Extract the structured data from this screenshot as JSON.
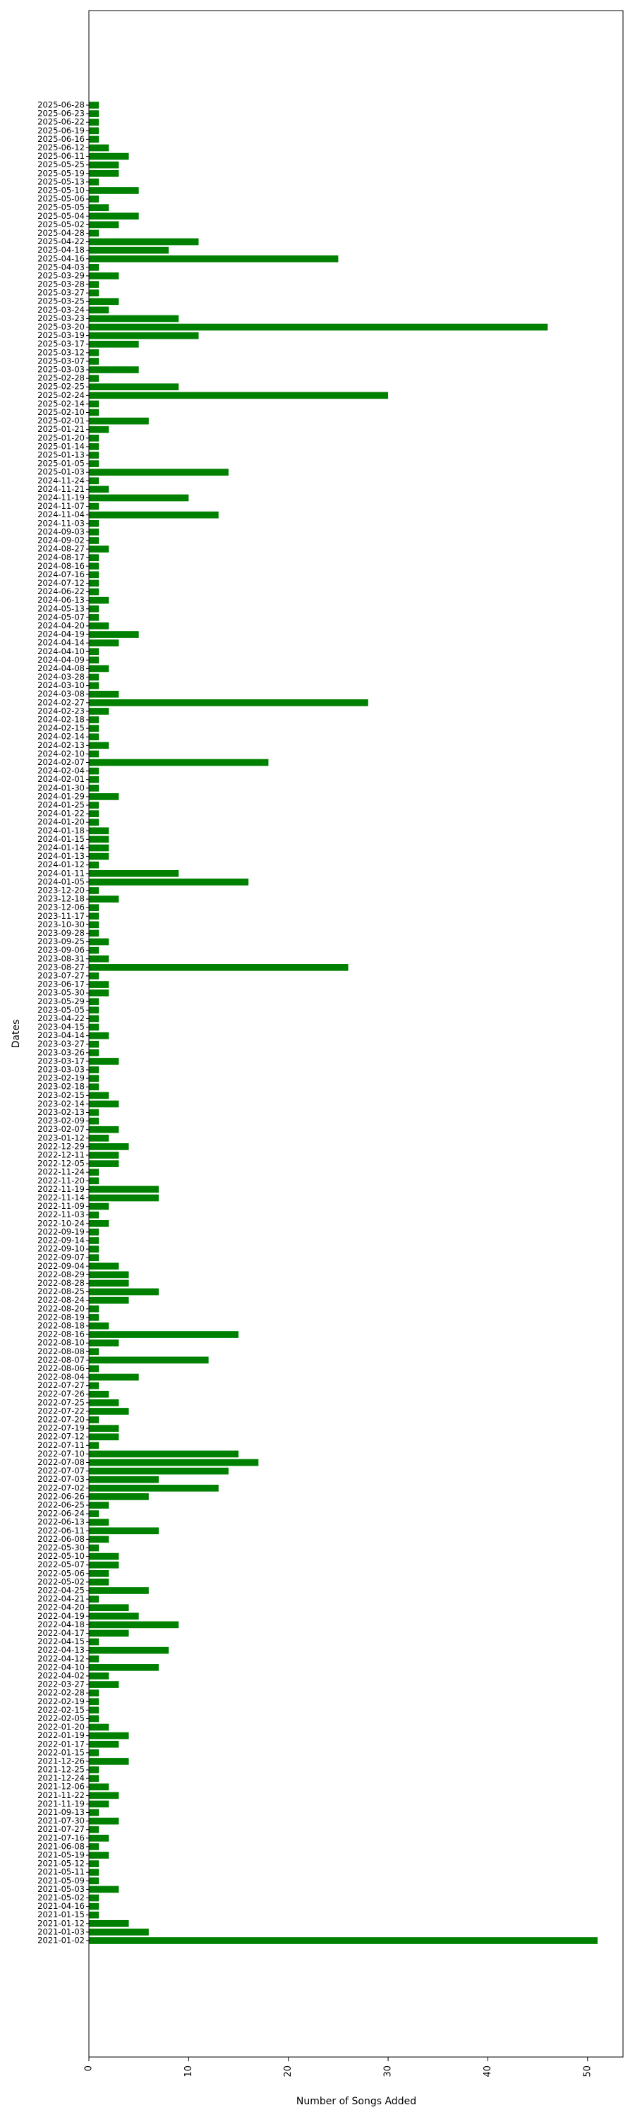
{
  "chart_data": {
    "type": "barh",
    "xlabel": "Number of Songs Added",
    "ylabel": "Dates",
    "color": "#008000",
    "xlim": [
      0,
      53.55
    ],
    "xticks": [
      0,
      10,
      20,
      30,
      40,
      50
    ],
    "categories": [
      "2021-01-02",
      "2021-01-03",
      "2021-01-12",
      "2021-01-15",
      "2021-04-16",
      "2021-05-02",
      "2021-05-03",
      "2021-05-09",
      "2021-05-11",
      "2021-05-12",
      "2021-05-19",
      "2021-06-08",
      "2021-07-16",
      "2021-07-27",
      "2021-07-30",
      "2021-09-13",
      "2021-11-19",
      "2021-11-22",
      "2021-12-06",
      "2021-12-24",
      "2021-12-25",
      "2021-12-26",
      "2022-01-15",
      "2022-01-17",
      "2022-01-19",
      "2022-01-20",
      "2022-02-05",
      "2022-02-15",
      "2022-02-19",
      "2022-02-28",
      "2022-03-27",
      "2022-04-02",
      "2022-04-10",
      "2022-04-12",
      "2022-04-13",
      "2022-04-15",
      "2022-04-17",
      "2022-04-18",
      "2022-04-19",
      "2022-04-20",
      "2022-04-21",
      "2022-04-25",
      "2022-05-02",
      "2022-05-06",
      "2022-05-07",
      "2022-05-10",
      "2022-05-30",
      "2022-06-08",
      "2022-06-11",
      "2022-06-13",
      "2022-06-24",
      "2022-06-25",
      "2022-06-26",
      "2022-07-02",
      "2022-07-03",
      "2022-07-07",
      "2022-07-08",
      "2022-07-10",
      "2022-07-11",
      "2022-07-12",
      "2022-07-19",
      "2022-07-20",
      "2022-07-22",
      "2022-07-25",
      "2022-07-26",
      "2022-07-27",
      "2022-08-04",
      "2022-08-06",
      "2022-08-07",
      "2022-08-08",
      "2022-08-10",
      "2022-08-16",
      "2022-08-18",
      "2022-08-19",
      "2022-08-20",
      "2022-08-24",
      "2022-08-25",
      "2022-08-28",
      "2022-08-29",
      "2022-09-04",
      "2022-09-07",
      "2022-09-10",
      "2022-09-14",
      "2022-09-19",
      "2022-10-24",
      "2022-11-03",
      "2022-11-09",
      "2022-11-14",
      "2022-11-19",
      "2022-11-20",
      "2022-11-24",
      "2022-12-05",
      "2022-12-11",
      "2022-12-29",
      "2023-01-12",
      "2023-02-07",
      "2023-02-09",
      "2023-02-13",
      "2023-02-14",
      "2023-02-15",
      "2023-02-18",
      "2023-02-19",
      "2023-03-03",
      "2023-03-17",
      "2023-03-26",
      "2023-03-27",
      "2023-04-14",
      "2023-04-15",
      "2023-04-22",
      "2023-05-05",
      "2023-05-29",
      "2023-05-30",
      "2023-06-17",
      "2023-07-27",
      "2023-08-27",
      "2023-08-31",
      "2023-09-06",
      "2023-09-25",
      "2023-09-28",
      "2023-10-30",
      "2023-11-17",
      "2023-12-06",
      "2023-12-18",
      "2023-12-20",
      "2024-01-05",
      "2024-01-11",
      "2024-01-12",
      "2024-01-13",
      "2024-01-14",
      "2024-01-15",
      "2024-01-18",
      "2024-01-20",
      "2024-01-22",
      "2024-01-25",
      "2024-01-29",
      "2024-01-30",
      "2024-02-01",
      "2024-02-04",
      "2024-02-07",
      "2024-02-10",
      "2024-02-13",
      "2024-02-14",
      "2024-02-15",
      "2024-02-18",
      "2024-02-23",
      "2024-02-27",
      "2024-03-08",
      "2024-03-10",
      "2024-03-28",
      "2024-04-08",
      "2024-04-09",
      "2024-04-10",
      "2024-04-14",
      "2024-04-19",
      "2024-04-20",
      "2024-05-07",
      "2024-05-13",
      "2024-06-13",
      "2024-06-22",
      "2024-07-12",
      "2024-07-16",
      "2024-08-16",
      "2024-08-17",
      "2024-08-27",
      "2024-09-02",
      "2024-09-03",
      "2024-11-03",
      "2024-11-04",
      "2024-11-07",
      "2024-11-19",
      "2024-11-21",
      "2024-11-24",
      "2025-01-03",
      "2025-01-05",
      "2025-01-13",
      "2025-01-14",
      "2025-01-20",
      "2025-01-21",
      "2025-02-01",
      "2025-02-10",
      "2025-02-14",
      "2025-02-24",
      "2025-02-25",
      "2025-02-28",
      "2025-03-03",
      "2025-03-07",
      "2025-03-12",
      "2025-03-17",
      "2025-03-19",
      "2025-03-20",
      "2025-03-23",
      "2025-03-24",
      "2025-03-25",
      "2025-03-27",
      "2025-03-28",
      "2025-03-29",
      "2025-04-03",
      "2025-04-16",
      "2025-04-18",
      "2025-04-22",
      "2025-04-28",
      "2025-05-02",
      "2025-05-04",
      "2025-05-05",
      "2025-05-06",
      "2025-05-10",
      "2025-05-13",
      "2025-05-19",
      "2025-05-25",
      "2025-06-11",
      "2025-06-12",
      "2025-06-16",
      "2025-06-19",
      "2025-06-22",
      "2025-06-23",
      "2025-06-28"
    ],
    "values": [
      51,
      6,
      4,
      1,
      1,
      1,
      3,
      1,
      1,
      1,
      2,
      1,
      2,
      1,
      3,
      1,
      2,
      3,
      2,
      1,
      1,
      4,
      1,
      3,
      4,
      2,
      1,
      1,
      1,
      1,
      3,
      2,
      7,
      1,
      8,
      1,
      4,
      9,
      5,
      4,
      1,
      6,
      2,
      2,
      3,
      3,
      1,
      2,
      7,
      2,
      1,
      2,
      6,
      13,
      7,
      14,
      17,
      15,
      1,
      3,
      3,
      1,
      4,
      3,
      2,
      1,
      5,
      1,
      12,
      1,
      3,
      15,
      2,
      1,
      1,
      4,
      7,
      4,
      4,
      3,
      1,
      1,
      1,
      1,
      2,
      1,
      2,
      7,
      7,
      1,
      1,
      3,
      3,
      4,
      2,
      3,
      1,
      1,
      3,
      2,
      1,
      1,
      1,
      3,
      1,
      1,
      2,
      1,
      1,
      1,
      1,
      2,
      2,
      1,
      26,
      2,
      1,
      2,
      1,
      1,
      1,
      1,
      3,
      1,
      16,
      9,
      1,
      2,
      2,
      2,
      2,
      1,
      1,
      1,
      3,
      1,
      1,
      1,
      18,
      1,
      2,
      1,
      1,
      1,
      2,
      28,
      3,
      1,
      1,
      2,
      1,
      1,
      3,
      5,
      2,
      1,
      1,
      2,
      1,
      1,
      1,
      1,
      1,
      2,
      1,
      1,
      1,
      13,
      1,
      10,
      2,
      1,
      14,
      1,
      1,
      1,
      1,
      2,
      6,
      1,
      1,
      30,
      9,
      1,
      5,
      1,
      1,
      5,
      11,
      46,
      9,
      2,
      3,
      1,
      1,
      3,
      1,
      25,
      8,
      11,
      1,
      3,
      5,
      2,
      1,
      5,
      1,
      3,
      3,
      4,
      2,
      1,
      1,
      1,
      1,
      1
    ]
  }
}
